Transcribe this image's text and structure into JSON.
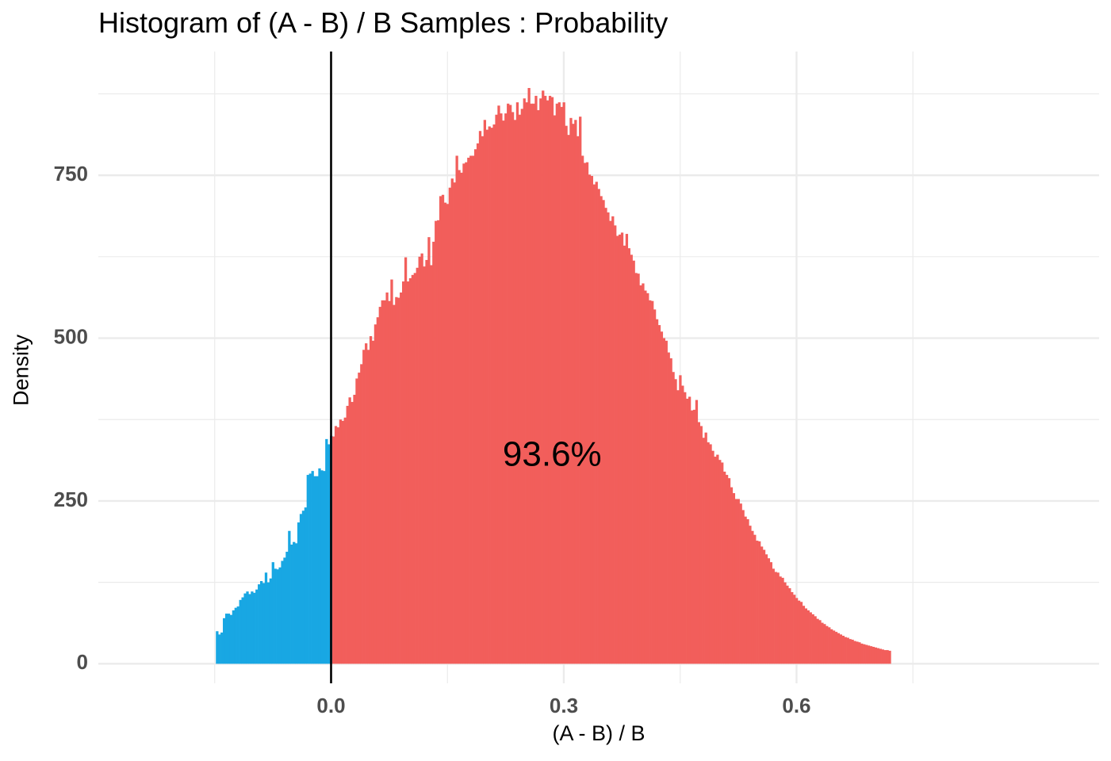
{
  "chart_data": {
    "type": "bar",
    "title": "Histogram of (A - B) / B Samples : Probability",
    "xlabel": "(A - B) / B",
    "ylabel": "Density",
    "xlim": [
      -0.3,
      0.99
    ],
    "ylim": [
      -30,
      940
    ],
    "x_ticks": [
      0.0,
      0.3,
      0.6
    ],
    "x_tick_labels": [
      "0.0",
      "0.3",
      "0.6"
    ],
    "x_minor_gridlines": [
      -0.15,
      0.15,
      0.45,
      0.75
    ],
    "y_ticks": [
      0,
      250,
      500,
      750
    ],
    "y_tick_labels": [
      "0",
      "250",
      "500",
      "750"
    ],
    "y_minor_gridlines": [
      125,
      375,
      625,
      875
    ],
    "grid": true,
    "legend": "none",
    "vline_x": 0.0,
    "annotation": {
      "text": "93.6%",
      "x": 0.285,
      "y": 310
    },
    "bin_start": -0.1485,
    "bin_width": 0.003,
    "colors": {
      "negative": "#18a7e3",
      "positive": "#f25e5b",
      "vline": "#000000",
      "grid": "#ebebeb"
    },
    "values": [
      50,
      45,
      48,
      70,
      77,
      77,
      75,
      82,
      86,
      88,
      98,
      102,
      108,
      111,
      107,
      111,
      109,
      114,
      122,
      127,
      124,
      140,
      125,
      131,
      156,
      146,
      145,
      148,
      158,
      163,
      172,
      204,
      183,
      187,
      185,
      217,
      230,
      235,
      240,
      290,
      292,
      296,
      288,
      288,
      300,
      297,
      296,
      345,
      337,
      350,
      349,
      365,
      363,
      375,
      373,
      378,
      396,
      409,
      402,
      413,
      438,
      447,
      460,
      482,
      492,
      482,
      503,
      496,
      521,
      532,
      548,
      558,
      558,
      570,
      557,
      590,
      551,
      563,
      562,
      570,
      587,
      624,
      587,
      592,
      597,
      600,
      608,
      625,
      630,
      610,
      620,
      655,
      612,
      648,
      680,
      681,
      718,
      720,
      708,
      706,
      731,
      745,
      739,
      780,
      758,
      754,
      768,
      770,
      777,
      780,
      780,
      790,
      799,
      818,
      810,
      835,
      820,
      825,
      823,
      828,
      843,
      857,
      845,
      834,
      845,
      860,
      858,
      847,
      835,
      862,
      843,
      852,
      868,
      862,
      884,
      860,
      860,
      872,
      850,
      868,
      880,
      872,
      865,
      872,
      870,
      842,
      860,
      862,
      855,
      862,
      826,
      812,
      838,
      829,
      835,
      810,
      840,
      780,
      769,
      770,
      751,
      749,
      736,
      740,
      729,
      718,
      712,
      700,
      693,
      680,
      687,
      673,
      657,
      659,
      662,
      642,
      660,
      638,
      628,
      619,
      600,
      599,
      581,
      584,
      573,
      569,
      558,
      557,
      544,
      529,
      520,
      510,
      500,
      496,
      478,
      469,
      448,
      437,
      420,
      443,
      427,
      417,
      407,
      410,
      389,
      390,
      405,
      371,
      365,
      347,
      355,
      340,
      337,
      327,
      318,
      321,
      313,
      309,
      295,
      290,
      285,
      271,
      262,
      253,
      253,
      246,
      236,
      226,
      222,
      212,
      204,
      198,
      189,
      188,
      180,
      175,
      168,
      162,
      156,
      146,
      141,
      140,
      134,
      132,
      125,
      120,
      116,
      110,
      106,
      101,
      97,
      95,
      89,
      85,
      82,
      79,
      76,
      73,
      69,
      67,
      63,
      61,
      58,
      56,
      53,
      51,
      49,
      47,
      45,
      43,
      41,
      40,
      38,
      37,
      35,
      34,
      33,
      31,
      30,
      29,
      28,
      27,
      26,
      25,
      24,
      23,
      22,
      21,
      21,
      20
    ]
  }
}
